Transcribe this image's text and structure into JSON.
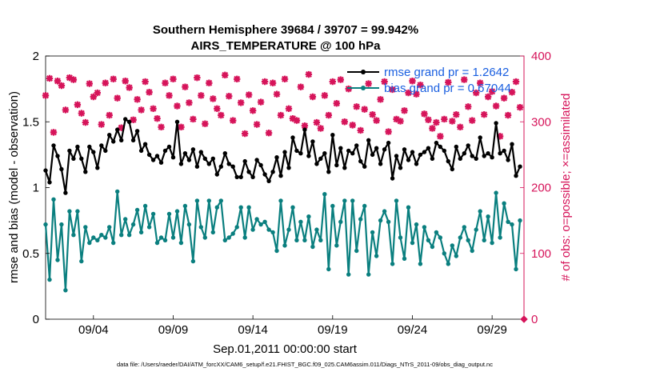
{
  "chart_data": {
    "type": "line",
    "title": "Southern Hemisphere 39684 / 39707 = 99.942%",
    "subtitle": "AIRS_TEMPERATURE @ 100 hPa",
    "xlabel": "Sep.01,2011 00:00:00 start",
    "ylabel": "rmse and bias (model - observation)",
    "y2label": "# of obs: o=possible; ×=assimilated",
    "xlim": [
      0,
      30
    ],
    "ylim": [
      0,
      2
    ],
    "y2lim": [
      0,
      400
    ],
    "x_ticks": [
      {
        "x": 3,
        "label": "09/04"
      },
      {
        "x": 8,
        "label": "09/09"
      },
      {
        "x": 13,
        "label": "09/14"
      },
      {
        "x": 18,
        "label": "09/19"
      },
      {
        "x": 23,
        "label": "09/24"
      },
      {
        "x": 28,
        "label": "09/29"
      }
    ],
    "y_ticks": [
      0,
      0.5,
      1,
      1.5,
      2
    ],
    "y2_ticks": [
      0,
      100,
      200,
      300,
      400
    ],
    "grid": false,
    "legend_position": "top-right",
    "colors": {
      "rmse": "#000000",
      "bias": "#0a7f7f",
      "obs": "#d6145a",
      "right_axis": "#d6145a",
      "legend_text": "#1a5fe0"
    },
    "series": [
      {
        "name": "rmse grand pr = 1.2642",
        "axis": "left",
        "color": "#000000",
        "marker": "circle",
        "x": [
          0.0,
          0.25,
          0.5,
          0.75,
          1.0,
          1.25,
          1.5,
          1.75,
          2.0,
          2.25,
          2.5,
          2.75,
          3.0,
          3.25,
          3.5,
          3.75,
          4.0,
          4.25,
          4.5,
          4.75,
          5.0,
          5.25,
          5.5,
          5.75,
          6.0,
          6.25,
          6.5,
          6.75,
          7.0,
          7.25,
          7.5,
          7.75,
          8.0,
          8.25,
          8.5,
          8.75,
          9.0,
          9.25,
          9.5,
          9.75,
          10.0,
          10.25,
          10.5,
          10.75,
          11.0,
          11.25,
          11.5,
          11.75,
          12.0,
          12.25,
          12.5,
          12.75,
          13.0,
          13.25,
          13.5,
          13.75,
          14.0,
          14.25,
          14.5,
          14.75,
          15.0,
          15.25,
          15.5,
          15.75,
          16.0,
          16.25,
          16.5,
          16.75,
          17.0,
          17.25,
          17.5,
          17.75,
          18.0,
          18.25,
          18.5,
          18.75,
          19.0,
          19.25,
          19.5,
          19.75,
          20.0,
          20.25,
          20.5,
          20.75,
          21.0,
          21.25,
          21.5,
          21.75,
          22.0,
          22.25,
          22.5,
          22.75,
          23.0,
          23.25,
          23.5,
          23.75,
          24.0,
          24.25,
          24.5,
          24.75,
          25.0,
          25.25,
          25.5,
          25.75,
          26.0,
          26.25,
          26.5,
          26.75,
          27.0,
          27.25,
          27.5,
          27.75,
          28.0,
          28.25,
          28.5,
          28.75,
          29.0,
          29.25,
          29.5,
          29.75
        ],
        "values": [
          1.13,
          1.04,
          1.32,
          1.24,
          1.14,
          0.96,
          1.28,
          1.22,
          1.31,
          1.22,
          1.12,
          1.31,
          1.27,
          1.15,
          1.32,
          1.28,
          1.4,
          1.35,
          1.44,
          1.36,
          1.52,
          1.5,
          1.36,
          1.43,
          1.28,
          1.33,
          1.25,
          1.21,
          1.24,
          1.19,
          1.28,
          1.31,
          1.23,
          1.5,
          1.18,
          1.26,
          1.21,
          1.29,
          1.16,
          1.27,
          1.22,
          1.18,
          1.22,
          1.1,
          1.16,
          1.26,
          1.18,
          1.16,
          1.08,
          1.08,
          1.2,
          1.12,
          1.08,
          1.21,
          1.17,
          1.1,
          1.05,
          1.12,
          1.23,
          1.09,
          1.27,
          1.15,
          1.38,
          1.28,
          1.26,
          1.44,
          1.24,
          1.35,
          1.18,
          1.22,
          1.26,
          1.12,
          1.4,
          1.17,
          1.3,
          1.15,
          1.28,
          1.26,
          1.32,
          1.2,
          1.16,
          1.36,
          1.25,
          1.3,
          1.18,
          1.29,
          1.34,
          1.07,
          1.24,
          1.15,
          1.29,
          1.21,
          1.27,
          1.18,
          1.25,
          1.27,
          1.3,
          1.22,
          1.34,
          1.31,
          1.28,
          1.2,
          1.14,
          1.31,
          1.22,
          1.26,
          1.32,
          1.24,
          1.22,
          1.38,
          1.24,
          1.26,
          1.23,
          1.49,
          1.26,
          1.28,
          1.21,
          1.33,
          1.09,
          1.16
        ]
      },
      {
        "name": "bias grand pr = 0.67044",
        "axis": "left",
        "color": "#0a7f7f",
        "marker": "circle",
        "x": [
          0.0,
          0.25,
          0.5,
          0.75,
          1.0,
          1.25,
          1.5,
          1.75,
          2.0,
          2.25,
          2.5,
          2.75,
          3.0,
          3.25,
          3.5,
          3.75,
          4.0,
          4.25,
          4.5,
          4.75,
          5.0,
          5.25,
          5.5,
          5.75,
          6.0,
          6.25,
          6.5,
          6.75,
          7.0,
          7.25,
          7.5,
          7.75,
          8.0,
          8.25,
          8.5,
          8.75,
          9.0,
          9.25,
          9.5,
          9.75,
          10.0,
          10.25,
          10.5,
          10.75,
          11.0,
          11.25,
          11.5,
          11.75,
          12.0,
          12.25,
          12.5,
          12.75,
          13.0,
          13.25,
          13.5,
          13.75,
          14.0,
          14.25,
          14.5,
          14.75,
          15.0,
          15.25,
          15.5,
          15.75,
          16.0,
          16.25,
          16.5,
          16.75,
          17.0,
          17.25,
          17.5,
          17.75,
          18.0,
          18.25,
          18.5,
          18.75,
          19.0,
          19.25,
          19.5,
          19.75,
          20.0,
          20.25,
          20.5,
          20.75,
          21.0,
          21.25,
          21.5,
          21.75,
          22.0,
          22.25,
          22.5,
          22.75,
          23.0,
          23.25,
          23.5,
          23.75,
          24.0,
          24.25,
          24.5,
          24.75,
          25.0,
          25.25,
          25.5,
          25.75,
          26.0,
          26.25,
          26.5,
          26.75,
          27.0,
          27.25,
          27.5,
          27.75,
          28.0,
          28.25,
          28.5,
          28.75,
          29.0,
          29.25,
          29.5,
          29.75
        ],
        "values": [
          0.72,
          0.3,
          0.91,
          0.45,
          0.72,
          0.22,
          0.82,
          0.64,
          0.82,
          0.44,
          0.7,
          0.58,
          0.62,
          0.6,
          0.64,
          0.62,
          0.7,
          0.58,
          0.97,
          0.64,
          0.76,
          0.64,
          0.72,
          0.83,
          0.66,
          0.86,
          0.7,
          0.8,
          0.58,
          0.62,
          0.6,
          0.8,
          0.62,
          0.82,
          0.58,
          0.86,
          0.72,
          0.44,
          0.9,
          0.7,
          0.62,
          0.9,
          0.66,
          0.85,
          0.9,
          0.6,
          0.62,
          0.65,
          0.7,
          0.85,
          0.62,
          0.85,
          0.68,
          0.76,
          0.72,
          0.74,
          0.68,
          0.66,
          0.52,
          0.9,
          0.56,
          0.68,
          0.85,
          0.6,
          0.74,
          0.6,
          0.78,
          0.55,
          0.68,
          0.6,
          0.95,
          0.38,
          0.86,
          0.56,
          0.74,
          0.9,
          0.34,
          0.9,
          0.52,
          0.76,
          0.86,
          0.34,
          0.66,
          0.48,
          0.75,
          0.82,
          0.74,
          0.42,
          0.9,
          0.62,
          0.46,
          0.85,
          0.58,
          0.72,
          0.42,
          0.7,
          0.6,
          0.55,
          0.66,
          0.62,
          0.5,
          0.42,
          0.56,
          0.48,
          0.62,
          0.7,
          0.6,
          0.52,
          0.68,
          0.82,
          0.6,
          0.78,
          0.58,
          0.96,
          0.62,
          0.88,
          0.74,
          0.72,
          0.38,
          0.75
        ]
      },
      {
        "name": "# of obs possible / assimilated",
        "axis": "right",
        "color": "#d6145a",
        "marker": "x",
        "x": [
          0.0,
          0.25,
          0.5,
          0.75,
          1.0,
          1.25,
          1.5,
          1.75,
          2.0,
          2.25,
          2.5,
          2.75,
          3.0,
          3.25,
          3.5,
          3.75,
          4.0,
          4.25,
          4.5,
          4.75,
          5.0,
          5.25,
          5.5,
          5.75,
          6.0,
          6.25,
          6.5,
          6.75,
          7.0,
          7.25,
          7.5,
          7.75,
          8.0,
          8.25,
          8.5,
          8.75,
          9.0,
          9.25,
          9.5,
          9.75,
          10.0,
          10.25,
          10.5,
          10.75,
          11.0,
          11.25,
          11.5,
          11.75,
          12.0,
          12.25,
          12.5,
          12.75,
          13.0,
          13.25,
          13.5,
          13.75,
          14.0,
          14.25,
          14.5,
          14.75,
          15.0,
          15.25,
          15.5,
          15.75,
          16.0,
          16.25,
          16.5,
          16.75,
          17.0,
          17.25,
          17.5,
          17.75,
          18.0,
          18.25,
          18.5,
          18.75,
          19.0,
          19.25,
          19.5,
          19.75,
          20.0,
          20.25,
          20.5,
          20.75,
          21.0,
          21.25,
          21.5,
          21.75,
          22.0,
          22.25,
          22.5,
          22.75,
          23.0,
          23.25,
          23.5,
          23.75,
          24.0,
          24.25,
          24.5,
          24.75,
          25.0,
          25.25,
          25.5,
          25.75,
          26.0,
          26.25,
          26.5,
          26.75,
          27.0,
          27.25,
          27.5,
          27.75,
          28.0,
          28.25,
          28.5,
          28.75,
          29.0,
          29.25,
          29.5,
          29.75
        ],
        "values": [
          340,
          366,
          284,
          362,
          355,
          318,
          367,
          364,
          326,
          313,
          299,
          358,
          338,
          344,
          296,
          359,
          310,
          365,
          336,
          291,
          362,
          352,
          303,
          334,
          318,
          361,
          345,
          320,
          305,
          292,
          359,
          340,
          365,
          324,
          292,
          353,
          329,
          304,
          367,
          340,
          297,
          359,
          335,
          320,
          310,
          371,
          339,
          302,
          365,
          329,
          282,
          341,
          317,
          296,
          330,
          361,
          283,
          359,
          342,
          310,
          365,
          320,
          305,
          302,
          353,
          294,
          372,
          338,
          299,
          290,
          340,
          310,
          361,
          328,
          364,
          300,
          350,
          295,
          323,
          287,
          319,
          358,
          311,
          302,
          334,
          361,
          285,
          349,
          304,
          301,
          317,
          344,
          362,
          342,
          356,
          312,
          303,
          290,
          299,
          278,
          304,
          360,
          301,
          311,
          292,
          364,
          323,
          302,
          344,
          359,
          311,
          338,
          346,
          324,
          278,
          336,
          310,
          345,
          361,
          322
        ]
      },
      {
        "name": "# of obs possible",
        "axis": "right",
        "color": "#d6145a",
        "marker": "diamond",
        "x": [
          30.0
        ],
        "values": [
          0
        ]
      }
    ]
  },
  "footer": {
    "data_file": "data file: /Users/raeder/DAI/ATM_forcXX/CAM6_setup/f.e21.FHIST_BGC.f09_025.CAM6assim.011/Diags_NTrS_2011-09/obs_diag_output.nc"
  }
}
